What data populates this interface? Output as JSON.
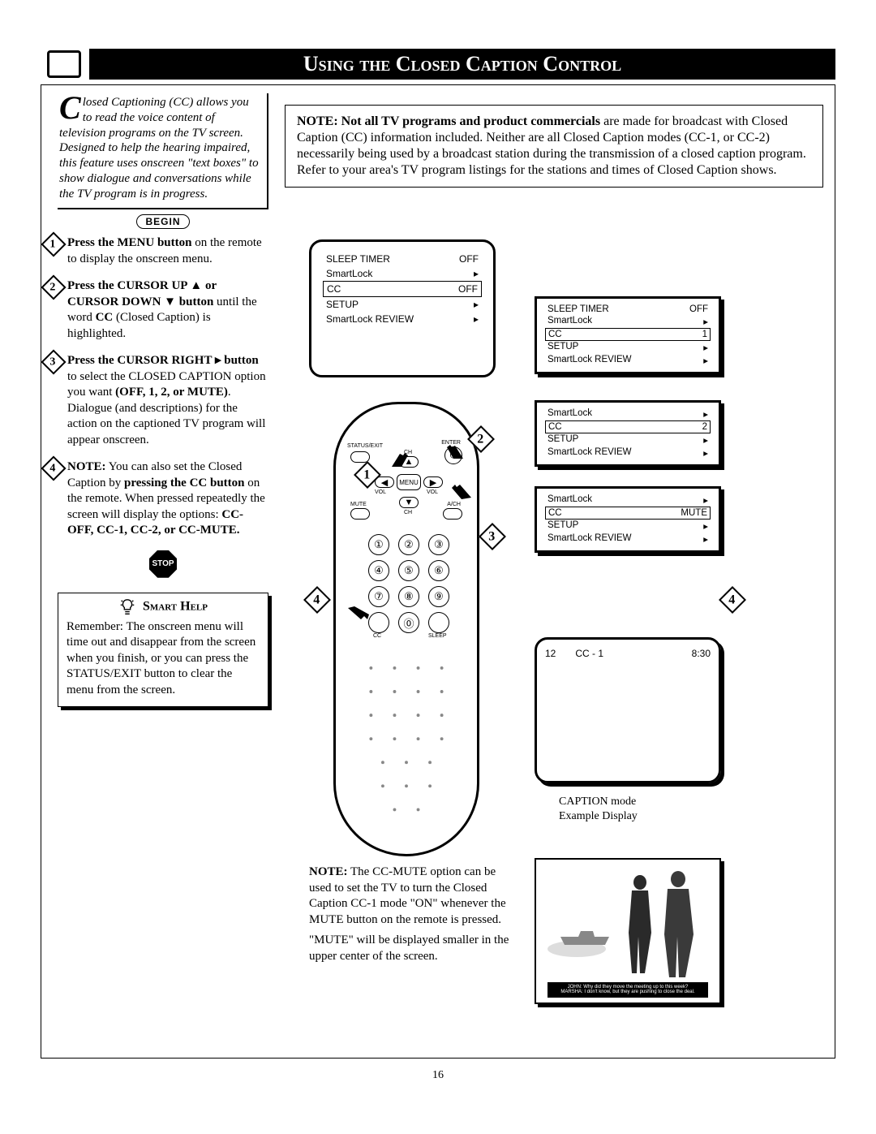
{
  "title": "Using the Closed Caption Control",
  "intro": "losed Captioning (CC) allows you to read the voice content of television programs on the TV screen. Designed to help the hearing impaired, this feature uses onscreen \"text boxes\" to show dialogue and conversations while the TV program is in progress.",
  "begin_label": "BEGIN",
  "steps": {
    "s1": {
      "n": "1",
      "bold": "Press the MENU button",
      "rest": " on the remote to display the onscreen menu."
    },
    "s2": {
      "n": "2",
      "bold": "Press the CURSOR UP ▲ or CURSOR DOWN ▼ button",
      "rest1": " until the word ",
      "cc": "CC",
      "rest2": " (Closed Caption) is highlighted."
    },
    "s3": {
      "n": "3",
      "bold": "Press the CURSOR RIGHT ▸ button",
      "rest1": " to select the CLOSED CAPTION option you want ",
      "opts": "(OFF, 1, 2, or MUTE)",
      "rest2": ". Dialogue (and descriptions) for the action on the captioned TV program will appear onscreen."
    },
    "s4": {
      "n": "4",
      "bold1": "NOTE:",
      "rest1": " You can also set the Closed Caption by ",
      "bold2": "pressing the CC button",
      "rest2": " on the remote. When pressed repeatedly the screen will display the options: ",
      "opts": "CC-OFF, CC-1, CC-2, or CC-MUTE."
    }
  },
  "stop": "STOP",
  "smarthelp": {
    "title": "Smart Help",
    "text": "Remember: The onscreen menu will time out and disappear from the screen when you finish, or you can press the STATUS/EXIT button to clear the menu from the screen."
  },
  "note_box": {
    "bold": "NOTE: Not all TV programs and product commercials",
    "rest": " are made for broadcast with Closed Caption (CC) information included. Neither are all Closed Caption modes (CC-1, or CC-2) necessarily being used by a broadcast station during the transmission of a closed caption program. Refer to your area's TV program listings for the stations and times of Closed Caption shows."
  },
  "menu_main": {
    "rows": [
      {
        "l": "SLEEP TIMER",
        "r": "OFF"
      },
      {
        "l": "SmartLock",
        "r": "▸"
      },
      {
        "l": "CC",
        "r": "OFF",
        "hi": true
      },
      {
        "l": "SETUP",
        "r": "▸"
      },
      {
        "l": "SmartLock REVIEW",
        "r": "▸"
      }
    ]
  },
  "mini_screens": [
    {
      "rows": [
        {
          "l": "SLEEP TIMER",
          "r": "OFF"
        },
        {
          "l": "SmartLock",
          "r": "▸"
        },
        {
          "l": "CC",
          "r": "1",
          "hi": true
        },
        {
          "l": "SETUP",
          "r": "▸"
        },
        {
          "l": "SmartLock REVIEW",
          "r": "▸"
        }
      ]
    },
    {
      "rows": [
        {
          "l": "SmartLock",
          "r": "▸"
        },
        {
          "l": "CC",
          "r": "2",
          "hi": true
        },
        {
          "l": "SETUP",
          "r": "▸"
        },
        {
          "l": "SmartLock REVIEW",
          "r": "▸"
        }
      ]
    },
    {
      "rows": [
        {
          "l": "SmartLock",
          "r": "▸"
        },
        {
          "l": "CC",
          "r": "MUTE",
          "hi": true
        },
        {
          "l": "SETUP",
          "r": "▸"
        },
        {
          "l": "SmartLock REVIEW",
          "r": "▸"
        }
      ]
    }
  ],
  "caption_example": {
    "ch": "12",
    "mode": "CC - 1",
    "time": "8:30",
    "label1": "CAPTION mode",
    "label2": "Example Display"
  },
  "bottom_note": {
    "bold": "NOTE:",
    "rest": " The CC-MUTE option can be used to set the TV to turn the Closed Caption CC-1 mode \"ON\" whenever the MUTE button on the remote is pressed.",
    "line2": "\"MUTE\" will be displayed smaller in the upper center of the screen."
  },
  "remote_labels": {
    "status": "STATUS/EXIT",
    "enter": "ENTER",
    "menu": "MENU",
    "vol_l": "VOL",
    "vol_r": "VOL",
    "ch_u": "CH",
    "ch_d": "CH",
    "mute": "MUTE",
    "ach": "A/CH",
    "cc": "CC",
    "sleep": "SLEEP"
  },
  "photo_caption": {
    "l1": "JOHN: Why did they move the meeting up to this week?",
    "l2": "MARSHA: I don't know, but they are pushing to close the deal."
  },
  "page_number": "16"
}
